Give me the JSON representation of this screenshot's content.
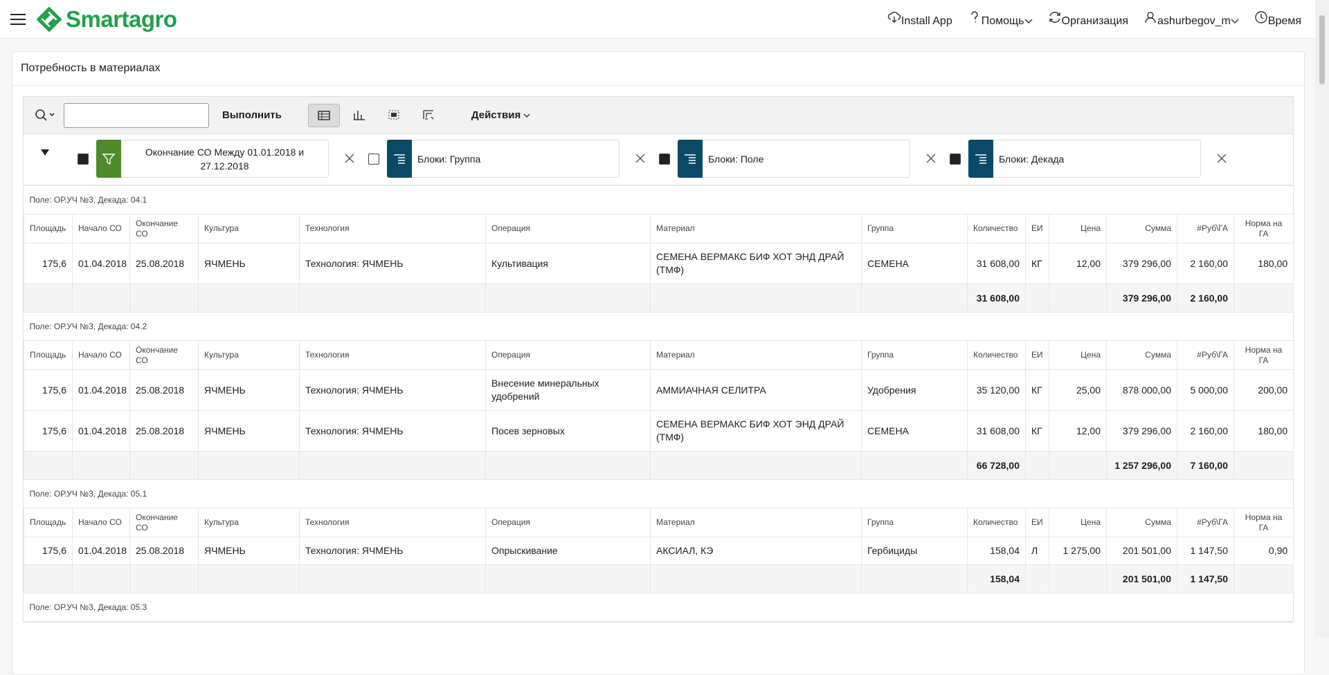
{
  "header": {
    "brand": "Smartagro",
    "nav": [
      "Install App",
      "Помощь",
      "Организация",
      "ashurbegov_m",
      "Время"
    ]
  },
  "region": {
    "title": "Потребность в материалах"
  },
  "toolbar": {
    "go": "Выполнить",
    "actions": "Действия"
  },
  "filters": [
    {
      "label": "Окончание СО Между 01.01.2018 и 27.12.2018",
      "enabled": true,
      "kind": "filter"
    },
    {
      "label": "Блоки: Группа",
      "enabled": false,
      "kind": "control-break"
    },
    {
      "label": "Блоки: Поле",
      "enabled": true,
      "kind": "control-break"
    },
    {
      "label": "Блоки: Декада",
      "enabled": true,
      "kind": "control-break"
    }
  ],
  "report": {
    "columns": [
      "Площадь",
      "Начало СО",
      "Окончание СО",
      "Культура",
      "Технология",
      "Операция",
      "Материал",
      "Группа",
      "Количество",
      "ЕИ",
      "Цена",
      "Сумма",
      "#Руб\\ГА",
      "Норма на ГА"
    ],
    "groups": [
      {
        "title": "Поле: ОР.УЧ №3, Декада: 04.1",
        "rows": [
          [
            "175,6",
            "01.04.2018",
            "25.08.2018",
            "ЯЧМЕНЬ",
            "Технология: ЯЧМЕНЬ",
            "Культивация",
            "СЕМЕНА ВЕРМАКС БИФ ХОТ ЭНД ДРАЙ (ТМФ)",
            "СЕМЕНА",
            "31 608,00",
            "КГ",
            "12,00",
            "379 296,00",
            "2 160,00",
            "180,00"
          ]
        ],
        "totals": [
          null,
          null,
          null,
          null,
          null,
          null,
          null,
          null,
          "31 608,00",
          null,
          null,
          "379 296,00",
          "2 160,00",
          null
        ]
      },
      {
        "title": "Поле: ОР.УЧ №3, Декада: 04.2",
        "rows": [
          [
            "175,6",
            "01.04.2018",
            "25.08.2018",
            "ЯЧМЕНЬ",
            "Технология: ЯЧМЕНЬ",
            "Внесение минеральных удобрений",
            "АММИАЧНАЯ СЕЛИТРА",
            "Удобрения",
            "35 120,00",
            "КГ",
            "25,00",
            "878 000,00",
            "5 000,00",
            "200,00"
          ],
          [
            "175,6",
            "01.04.2018",
            "25.08.2018",
            "ЯЧМЕНЬ",
            "Технология: ЯЧМЕНЬ",
            "Посев зерновых",
            "СЕМЕНА ВЕРМАКС БИФ ХОТ ЭНД ДРАЙ (ТМФ)",
            "СЕМЕНА",
            "31 608,00",
            "КГ",
            "12,00",
            "379 296,00",
            "2 160,00",
            "180,00"
          ]
        ],
        "totals": [
          null,
          null,
          null,
          null,
          null,
          null,
          null,
          null,
          "66 728,00",
          null,
          null,
          "1 257 296,00",
          "7 160,00",
          null
        ]
      },
      {
        "title": "Поле: ОР.УЧ №3, Декада: 05.1",
        "rows": [
          [
            "175,6",
            "01.04.2018",
            "25.08.2018",
            "ЯЧМЕНЬ",
            "Технология: ЯЧМЕНЬ",
            "Опрыскивание",
            "АКСИАЛ, КЭ",
            "Гербициды",
            "158,04",
            "Л",
            "1 275,00",
            "201 501,00",
            "1 147,50",
            "0,90"
          ]
        ],
        "totals": [
          null,
          null,
          null,
          null,
          null,
          null,
          null,
          null,
          "158,04",
          null,
          null,
          "201 501,00",
          "1 147,50",
          null
        ]
      },
      {
        "title": "Поле: ОР.УЧ №3, Декада: 05.3",
        "rows": []
      }
    ]
  }
}
